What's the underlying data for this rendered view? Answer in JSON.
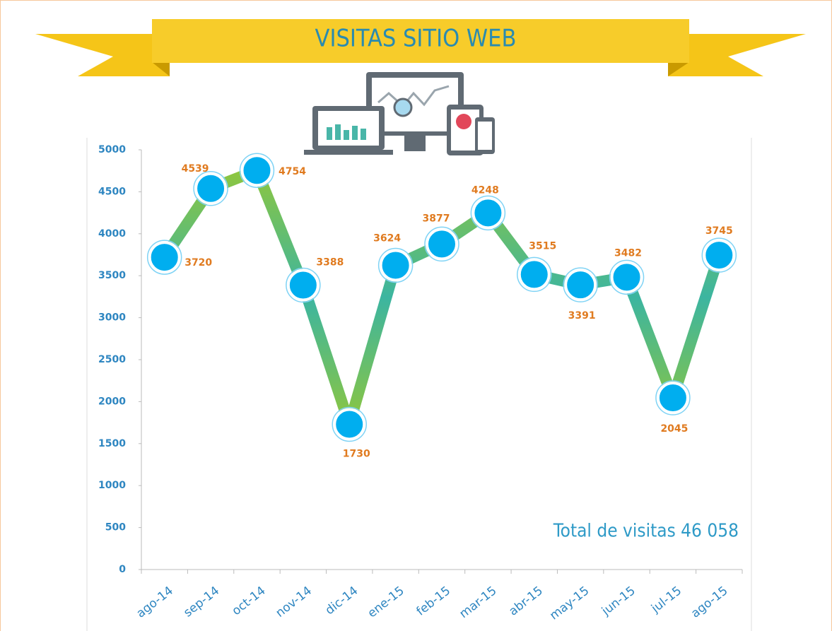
{
  "chart_data": {
    "type": "line",
    "title": "VISITAS SITIO WEB",
    "categories": [
      "ago-14",
      "sep-14",
      "oct-14",
      "nov-14",
      "dic-14",
      "ene-15",
      "feb-15",
      "mar-15",
      "abr-15",
      "may-15",
      "jun-15",
      "jul-15",
      "ago-15"
    ],
    "values": [
      3720,
      4539,
      4754,
      3388,
      1730,
      3624,
      3877,
      4248,
      3515,
      3391,
      3482,
      2045,
      3745
    ],
    "color": "#00aeef",
    "ylim": [
      0,
      5000
    ],
    "yticks": [
      0,
      500,
      1000,
      1500,
      2000,
      2500,
      3000,
      3500,
      4000,
      4500,
      5000
    ],
    "grid": false,
    "annotation": "Total de visitas 46 058"
  }
}
